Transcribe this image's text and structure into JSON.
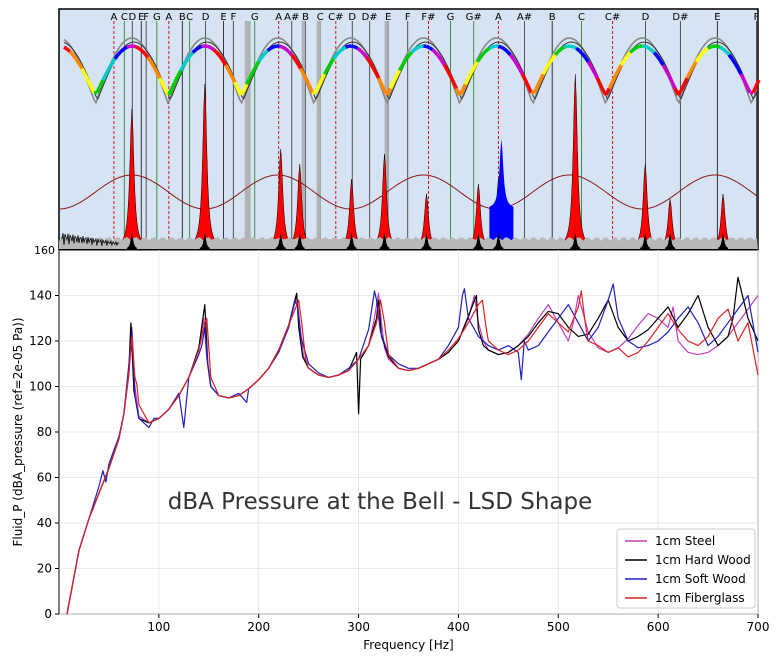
{
  "chart_data": [
    {
      "type": "area",
      "panel": "top",
      "description_visible_text_only": true,
      "note_labels": [
        "A",
        "C",
        "D",
        "E",
        "F",
        "G",
        "A",
        "B",
        "C",
        "D",
        "E",
        "F",
        "G",
        "A",
        "A#",
        "B",
        "C",
        "C#",
        "D",
        "D#",
        "E",
        "F",
        "F#",
        "G",
        "G#",
        "A",
        "A#",
        "B",
        "C",
        "C#",
        "D",
        "D#",
        "E",
        "F"
      ],
      "note_freqs": [
        55,
        65.4,
        73.4,
        82.4,
        87.3,
        98,
        110,
        123.5,
        130.8,
        146.8,
        164.8,
        174.6,
        196,
        220,
        233.1,
        246.9,
        261.6,
        277.2,
        293.7,
        311.1,
        329.6,
        349.2,
        370,
        392,
        415.3,
        440,
        466.2,
        493.9,
        523.3,
        554.4,
        587.3,
        622.3,
        659.3,
        698.5
      ],
      "x_range_hz": [
        0,
        700
      ],
      "peak_freqs_hz": [
        73,
        146,
        222,
        241,
        293,
        326,
        368,
        420,
        440,
        517,
        587,
        612,
        665
      ],
      "y_axis_top_label": "160",
      "colors": {
        "background": "#d6e3f2",
        "resonance_fill": "#ff0000",
        "blue_fill": "#0000ff",
        "black_fill": "#000000",
        "grey_fill": "#b8b8b8",
        "sine": "#8b1a1a",
        "green_line": "#2e8b2e",
        "red_dashed": "#cc0000"
      }
    },
    {
      "type": "line",
      "panel": "bottom",
      "title": "dBA Pressure at the Bell - LSD Shape",
      "xlabel": "Frequency [Hz]",
      "ylabel": "Fluid_P (dBA_pressure (ref=2e-05 Pa))",
      "xlim": [
        0,
        700
      ],
      "ylim": [
        0,
        160
      ],
      "x_ticks": [
        100,
        200,
        300,
        400,
        500,
        600,
        700
      ],
      "y_ticks": [
        0,
        20,
        40,
        60,
        80,
        100,
        120,
        140
      ],
      "grid": true,
      "legend_position": "bottom-right",
      "series": [
        {
          "name": "1cm Steel",
          "color": "#bf3fbf",
          "x": [
            8,
            20,
            30,
            40,
            50,
            60,
            65,
            70,
            73,
            76,
            80,
            90,
            100,
            110,
            120,
            130,
            140,
            145,
            148,
            152,
            160,
            170,
            180,
            190,
            200,
            210,
            220,
            230,
            238,
            241,
            245,
            250,
            260,
            270,
            280,
            290,
            300,
            310,
            315,
            320,
            323,
            326,
            330,
            340,
            350,
            360,
            370,
            380,
            390,
            400,
            410,
            416,
            420,
            425,
            430,
            440,
            450,
            460,
            470,
            480,
            490,
            500,
            510,
            515,
            520,
            530,
            540,
            550,
            560,
            570,
            580,
            590,
            600,
            610,
            615,
            620,
            630,
            640,
            650,
            660,
            670,
            680,
            690,
            700
          ],
          "y": [
            0,
            28,
            42,
            53,
            64,
            77,
            88,
            105,
            126,
            100,
            87,
            84,
            86,
            90,
            96,
            104,
            116,
            130,
            112,
            100,
            96,
            95,
            96,
            99,
            103,
            108,
            116,
            126,
            140,
            128,
            113,
            108,
            105,
            104,
            105,
            107,
            112,
            118,
            128,
            141,
            128,
            117,
            112,
            108,
            107,
            108,
            110,
            112,
            115,
            120,
            130,
            140,
            128,
            120,
            116,
            114,
            115,
            118,
            123,
            130,
            136,
            128,
            120,
            128,
            140,
            124,
            117,
            115,
            117,
            121,
            127,
            132,
            130,
            126,
            135,
            120,
            115,
            114,
            115,
            118,
            122,
            128,
            134,
            140
          ]
        },
        {
          "name": "1cm Hard Wood",
          "color": "#000000",
          "x": [
            8,
            20,
            30,
            40,
            50,
            60,
            65,
            70,
            72,
            75,
            80,
            90,
            100,
            110,
            120,
            130,
            140,
            146,
            149,
            152,
            160,
            170,
            180,
            190,
            200,
            210,
            220,
            230,
            238,
            240,
            244,
            250,
            260,
            270,
            280,
            290,
            298,
            300,
            302,
            310,
            318,
            320,
            323,
            330,
            340,
            350,
            360,
            370,
            380,
            390,
            400,
            410,
            418,
            420,
            425,
            430,
            440,
            450,
            460,
            470,
            480,
            490,
            500,
            510,
            520,
            530,
            540,
            550,
            560,
            570,
            580,
            590,
            600,
            610,
            620,
            630,
            640,
            650,
            660,
            670,
            675,
            680,
            690,
            700
          ],
          "y": [
            0,
            28,
            42,
            53,
            64,
            77,
            88,
            108,
            128,
            98,
            86,
            84,
            86,
            90,
            96,
            104,
            117,
            136,
            110,
            100,
            96,
            95,
            96,
            99,
            103,
            108,
            116,
            127,
            141,
            126,
            113,
            108,
            105,
            104,
            105,
            107,
            115,
            88,
            112,
            118,
            130,
            138,
            122,
            113,
            108,
            107,
            108,
            110,
            112,
            115,
            120,
            131,
            140,
            125,
            118,
            116,
            114,
            115,
            118,
            122,
            128,
            133,
            132,
            126,
            122,
            123,
            130,
            138,
            126,
            120,
            122,
            125,
            130,
            135,
            126,
            132,
            140,
            126,
            118,
            122,
            130,
            148,
            130,
            120
          ]
        },
        {
          "name": "1cm Soft Wood",
          "color": "#1f1fbf",
          "x": [
            8,
            20,
            30,
            40,
            44,
            47,
            50,
            60,
            65,
            70,
            73,
            76,
            80,
            85,
            90,
            95,
            100,
            110,
            120,
            125,
            130,
            140,
            143,
            146,
            149,
            152,
            160,
            170,
            180,
            188,
            190,
            200,
            210,
            220,
            230,
            236,
            239,
            242,
            250,
            260,
            270,
            280,
            290,
            300,
            310,
            316,
            318,
            322,
            330,
            340,
            350,
            360,
            370,
            380,
            390,
            400,
            404,
            406,
            410,
            420,
            430,
            440,
            450,
            460,
            463,
            466,
            470,
            480,
            490,
            500,
            510,
            520,
            530,
            540,
            550,
            555,
            560,
            570,
            580,
            590,
            600,
            610,
            620,
            630,
            640,
            650,
            660,
            670,
            680,
            690,
            700
          ],
          "y": [
            0,
            28,
            42,
            56,
            63,
            58,
            66,
            78,
            88,
            110,
            124,
            96,
            86,
            84,
            82,
            86,
            86,
            90,
            97,
            82,
            104,
            114,
            118,
            126,
            110,
            100,
            96,
            95,
            97,
            93,
            99,
            103,
            108,
            115,
            126,
            138,
            135,
            122,
            110,
            106,
            104,
            105,
            108,
            112,
            125,
            142,
            138,
            124,
            114,
            110,
            108,
            108,
            110,
            112,
            118,
            126,
            140,
            143,
            130,
            122,
            118,
            116,
            118,
            115,
            103,
            120,
            116,
            118,
            124,
            130,
            136,
            128,
            120,
            126,
            138,
            145,
            130,
            120,
            117,
            118,
            120,
            124,
            130,
            135,
            128,
            118,
            122,
            128,
            134,
            140,
            115
          ]
        },
        {
          "name": "1cm Fiberglass",
          "color": "#dd2222",
          "x": [
            8,
            20,
            30,
            40,
            50,
            60,
            65,
            70,
            73,
            76,
            78,
            80,
            90,
            100,
            110,
            120,
            130,
            140,
            146,
            148,
            152,
            160,
            170,
            180,
            190,
            200,
            210,
            220,
            230,
            240,
            243,
            247,
            250,
            260,
            270,
            280,
            290,
            300,
            310,
            318,
            322,
            326,
            330,
            340,
            350,
            360,
            370,
            380,
            390,
            400,
            410,
            420,
            424,
            428,
            430,
            440,
            450,
            460,
            470,
            480,
            490,
            500,
            510,
            520,
            523,
            527,
            530,
            540,
            550,
            560,
            570,
            580,
            590,
            600,
            610,
            620,
            630,
            640,
            650,
            660,
            670,
            680,
            690,
            700
          ],
          "y": [
            0,
            28,
            42,
            53,
            64,
            77,
            88,
            106,
            122,
            104,
            101,
            92,
            84,
            86,
            90,
            96,
            104,
            116,
            128,
            130,
            104,
            96,
            95,
            96,
            99,
            103,
            108,
            116,
            127,
            138,
            128,
            112,
            108,
            105,
            104,
            105,
            107,
            112,
            118,
            128,
            138,
            128,
            114,
            108,
            107,
            108,
            110,
            112,
            116,
            121,
            128,
            136,
            138,
            125,
            120,
            116,
            114,
            116,
            120,
            126,
            132,
            128,
            124,
            135,
            142,
            128,
            120,
            118,
            115,
            117,
            113,
            115,
            120,
            126,
            132,
            125,
            120,
            118,
            122,
            130,
            134,
            120,
            128,
            105
          ]
        }
      ]
    }
  ]
}
